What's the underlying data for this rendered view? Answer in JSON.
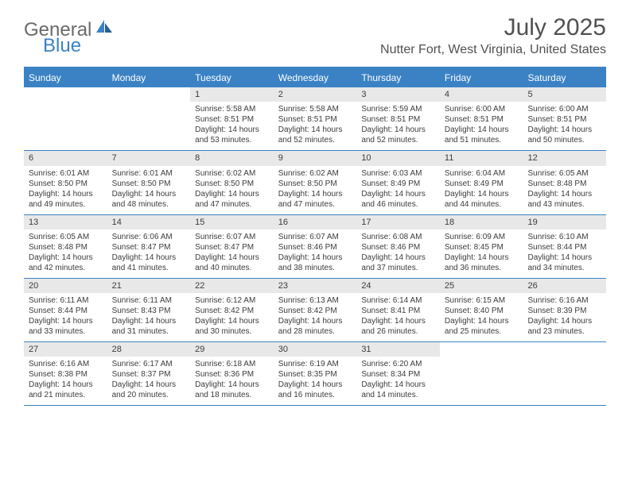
{
  "logo": {
    "text_gray": "General",
    "text_blue": "Blue"
  },
  "title": "July 2025",
  "location": "Nutter Fort, West Virginia, United States",
  "colors": {
    "accent": "#3b82c4",
    "header_gray": "#6a6a6a",
    "title_gray": "#515151",
    "day_bg": "#e8e8e8",
    "text": "#3c3c3c",
    "bg": "#ffffff"
  },
  "weekdays": [
    "Sunday",
    "Monday",
    "Tuesday",
    "Wednesday",
    "Thursday",
    "Friday",
    "Saturday"
  ],
  "weeks": [
    [
      null,
      null,
      {
        "n": "1",
        "sr": "5:58 AM",
        "ss": "8:51 PM",
        "dl": "14 hours and 53 minutes."
      },
      {
        "n": "2",
        "sr": "5:58 AM",
        "ss": "8:51 PM",
        "dl": "14 hours and 52 minutes."
      },
      {
        "n": "3",
        "sr": "5:59 AM",
        "ss": "8:51 PM",
        "dl": "14 hours and 52 minutes."
      },
      {
        "n": "4",
        "sr": "6:00 AM",
        "ss": "8:51 PM",
        "dl": "14 hours and 51 minutes."
      },
      {
        "n": "5",
        "sr": "6:00 AM",
        "ss": "8:51 PM",
        "dl": "14 hours and 50 minutes."
      }
    ],
    [
      {
        "n": "6",
        "sr": "6:01 AM",
        "ss": "8:50 PM",
        "dl": "14 hours and 49 minutes."
      },
      {
        "n": "7",
        "sr": "6:01 AM",
        "ss": "8:50 PM",
        "dl": "14 hours and 48 minutes."
      },
      {
        "n": "8",
        "sr": "6:02 AM",
        "ss": "8:50 PM",
        "dl": "14 hours and 47 minutes."
      },
      {
        "n": "9",
        "sr": "6:02 AM",
        "ss": "8:50 PM",
        "dl": "14 hours and 47 minutes."
      },
      {
        "n": "10",
        "sr": "6:03 AM",
        "ss": "8:49 PM",
        "dl": "14 hours and 46 minutes."
      },
      {
        "n": "11",
        "sr": "6:04 AM",
        "ss": "8:49 PM",
        "dl": "14 hours and 44 minutes."
      },
      {
        "n": "12",
        "sr": "6:05 AM",
        "ss": "8:48 PM",
        "dl": "14 hours and 43 minutes."
      }
    ],
    [
      {
        "n": "13",
        "sr": "6:05 AM",
        "ss": "8:48 PM",
        "dl": "14 hours and 42 minutes."
      },
      {
        "n": "14",
        "sr": "6:06 AM",
        "ss": "8:47 PM",
        "dl": "14 hours and 41 minutes."
      },
      {
        "n": "15",
        "sr": "6:07 AM",
        "ss": "8:47 PM",
        "dl": "14 hours and 40 minutes."
      },
      {
        "n": "16",
        "sr": "6:07 AM",
        "ss": "8:46 PM",
        "dl": "14 hours and 38 minutes."
      },
      {
        "n": "17",
        "sr": "6:08 AM",
        "ss": "8:46 PM",
        "dl": "14 hours and 37 minutes."
      },
      {
        "n": "18",
        "sr": "6:09 AM",
        "ss": "8:45 PM",
        "dl": "14 hours and 36 minutes."
      },
      {
        "n": "19",
        "sr": "6:10 AM",
        "ss": "8:44 PM",
        "dl": "14 hours and 34 minutes."
      }
    ],
    [
      {
        "n": "20",
        "sr": "6:11 AM",
        "ss": "8:44 PM",
        "dl": "14 hours and 33 minutes."
      },
      {
        "n": "21",
        "sr": "6:11 AM",
        "ss": "8:43 PM",
        "dl": "14 hours and 31 minutes."
      },
      {
        "n": "22",
        "sr": "6:12 AM",
        "ss": "8:42 PM",
        "dl": "14 hours and 30 minutes."
      },
      {
        "n": "23",
        "sr": "6:13 AM",
        "ss": "8:42 PM",
        "dl": "14 hours and 28 minutes."
      },
      {
        "n": "24",
        "sr": "6:14 AM",
        "ss": "8:41 PM",
        "dl": "14 hours and 26 minutes."
      },
      {
        "n": "25",
        "sr": "6:15 AM",
        "ss": "8:40 PM",
        "dl": "14 hours and 25 minutes."
      },
      {
        "n": "26",
        "sr": "6:16 AM",
        "ss": "8:39 PM",
        "dl": "14 hours and 23 minutes."
      }
    ],
    [
      {
        "n": "27",
        "sr": "6:16 AM",
        "ss": "8:38 PM",
        "dl": "14 hours and 21 minutes."
      },
      {
        "n": "28",
        "sr": "6:17 AM",
        "ss": "8:37 PM",
        "dl": "14 hours and 20 minutes."
      },
      {
        "n": "29",
        "sr": "6:18 AM",
        "ss": "8:36 PM",
        "dl": "14 hours and 18 minutes."
      },
      {
        "n": "30",
        "sr": "6:19 AM",
        "ss": "8:35 PM",
        "dl": "14 hours and 16 minutes."
      },
      {
        "n": "31",
        "sr": "6:20 AM",
        "ss": "8:34 PM",
        "dl": "14 hours and 14 minutes."
      },
      null,
      null
    ]
  ],
  "labels": {
    "sunrise": "Sunrise:",
    "sunset": "Sunset:",
    "daylight": "Daylight:"
  }
}
